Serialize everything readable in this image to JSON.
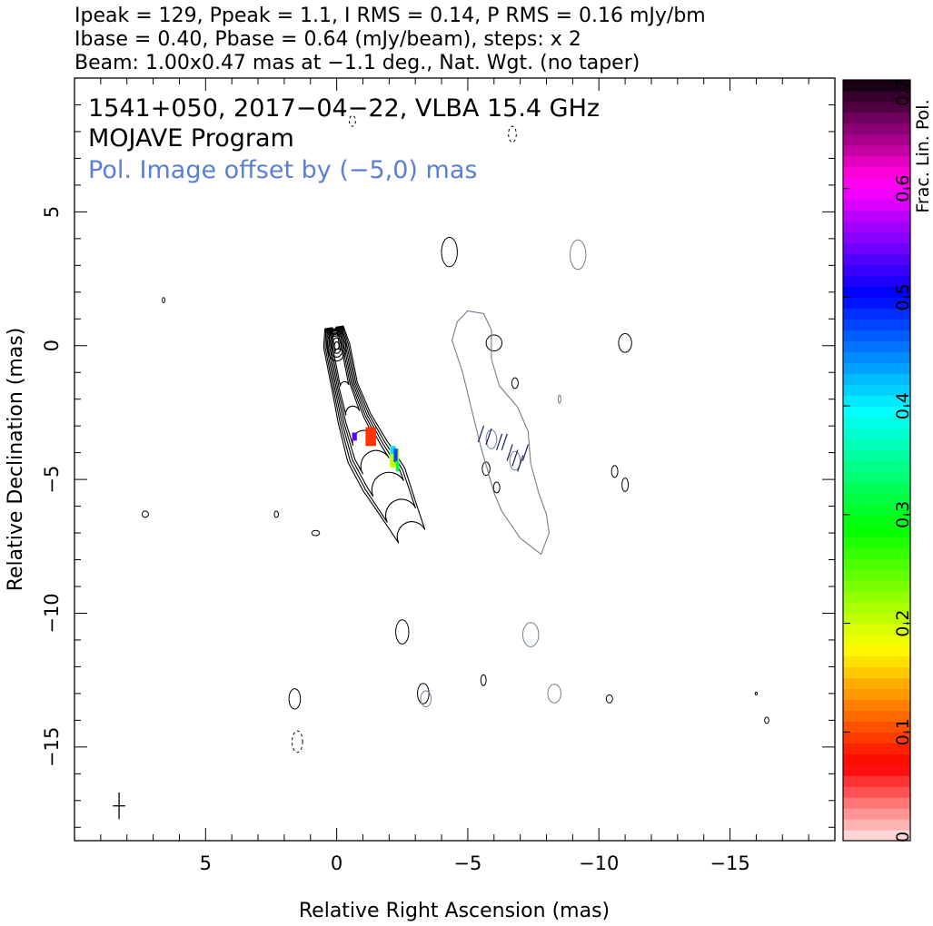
{
  "header": {
    "line1": "Ipeak = 129, Ppeak = 1.1, I RMS = 0.14, P RMS = 0.16 mJy/bm",
    "line2": "Ibase = 0.40, Pbase = 0.64 (mJy/beam), steps: x 2",
    "line3": "Beam: 1.00x0.47 mas at −1.1 deg., Nat. Wgt. (no taper)"
  },
  "inset": {
    "source_line": "1541+050, 2017−04−22, VLBA 15.4 GHz",
    "program_line": "MOJAVE Program",
    "offset_line": "Pol. Image offset by (−5,0) mas"
  },
  "colors": {
    "stokes_i_contours": "#000000",
    "pol_contours": "#6f7f8f",
    "pol_label": "#5a7fd8",
    "evpa_ticks": "#1a1a6a"
  },
  "chart_data": {
    "type": "contour",
    "xlabel": "Relative Right Ascension (mas)",
    "ylabel": "Relative Declination (mas)",
    "xlim": [
      10,
      -19
    ],
    "ylim": [
      -18.5,
      10
    ],
    "x_ticks": [
      {
        "v": 5,
        "label": "5"
      },
      {
        "v": 0,
        "label": "0"
      },
      {
        "v": -5,
        "label": "−5"
      },
      {
        "v": -10,
        "label": "−10"
      },
      {
        "v": -15,
        "label": "−15"
      }
    ],
    "y_ticks": [
      {
        "v": 5,
        "label": "5"
      },
      {
        "v": 0,
        "label": "0"
      },
      {
        "v": -5,
        "label": "−5"
      },
      {
        "v": -10,
        "label": "−10"
      },
      {
        "v": -15,
        "label": "−15"
      }
    ],
    "stokes_i_jet": {
      "levels": 8,
      "core": [
        0.0,
        0.0
      ],
      "axis": [
        [
          0.1,
          0.7
        ],
        [
          0.0,
          0.0
        ],
        [
          -0.3,
          -1.5
        ],
        [
          -0.7,
          -2.8
        ],
        [
          -1.2,
          -4.0
        ],
        [
          -1.8,
          -5.0
        ],
        [
          -2.4,
          -6.2
        ],
        [
          -2.9,
          -7.2
        ]
      ],
      "half_widths": [
        0.35,
        0.5,
        0.5,
        0.65,
        0.85,
        0.9,
        0.7,
        0.55
      ],
      "level_scale": [
        1.0,
        0.92,
        0.8,
        0.68,
        0.55,
        0.42,
        0.3,
        0.18
      ]
    },
    "noise_i": [
      [
        -4.3,
        3.5,
        0.3,
        0.55
      ],
      [
        -6.0,
        0.1,
        0.3,
        0.3
      ],
      [
        -11.0,
        0.1,
        0.25,
        0.35
      ],
      [
        -2.5,
        -10.7,
        0.25,
        0.45
      ],
      [
        1.6,
        -13.2,
        0.22,
        0.38
      ],
      [
        -3.3,
        -13.0,
        0.22,
        0.38
      ],
      [
        -5.6,
        -12.5,
        0.1,
        0.2
      ],
      [
        -10.4,
        -13.2,
        0.12,
        0.15
      ],
      [
        -16.4,
        -14.0,
        0.08,
        0.12
      ],
      [
        7.3,
        -6.3,
        0.12,
        0.12
      ],
      [
        2.3,
        -6.3,
        0.08,
        0.12
      ],
      [
        0.8,
        -7.0,
        0.15,
        0.1
      ],
      [
        -5.7,
        -4.6,
        0.15,
        0.25
      ],
      [
        -6.1,
        -5.3,
        0.12,
        0.2
      ],
      [
        -10.6,
        -4.7,
        0.12,
        0.22
      ],
      [
        -11.0,
        -5.2,
        0.12,
        0.25
      ],
      [
        -6.8,
        -1.4,
        0.12,
        0.2
      ],
      [
        6.6,
        1.7,
        0.05,
        0.1
      ],
      [
        -16.0,
        -13.0,
        0.04,
        0.05
      ]
    ],
    "noise_i_dashed": [
      [
        -0.6,
        8.4,
        0.12,
        0.2
      ],
      [
        -6.7,
        7.9,
        0.15,
        0.3
      ],
      [
        1.5,
        -14.8,
        0.2,
        0.4
      ]
    ],
    "pol_envelope": [
      [
        -5.0,
        1.3
      ],
      [
        -5.6,
        1.2
      ],
      [
        -5.9,
        0.6
      ],
      [
        -5.9,
        -0.5
      ],
      [
        -6.2,
        -1.5
      ],
      [
        -6.9,
        -2.3
      ],
      [
        -7.3,
        -3.2
      ],
      [
        -7.4,
        -4.4
      ],
      [
        -7.7,
        -5.5
      ],
      [
        -8.0,
        -6.3
      ],
      [
        -8.1,
        -7.0
      ],
      [
        -7.8,
        -7.8
      ],
      [
        -7.0,
        -7.2
      ],
      [
        -6.3,
        -6.2
      ],
      [
        -6.0,
        -5.5
      ],
      [
        -5.8,
        -4.8
      ],
      [
        -5.5,
        -3.8
      ],
      [
        -5.2,
        -2.6
      ],
      [
        -4.8,
        -1.0
      ],
      [
        -4.4,
        0.2
      ],
      [
        -4.6,
        0.9
      ]
    ],
    "noise_pol": [
      [
        -9.2,
        3.4,
        0.3,
        0.55
      ],
      [
        -7.4,
        -10.8,
        0.3,
        0.45
      ],
      [
        -8.3,
        -13.0,
        0.25,
        0.35
      ],
      [
        -3.4,
        -13.2,
        0.2,
        0.3
      ],
      [
        -5.9,
        -3.5,
        0.2,
        0.35
      ],
      [
        -6.8,
        -4.3,
        0.2,
        0.35
      ],
      [
        -8.5,
        -2.0,
        0.05,
        0.15
      ]
    ],
    "evpa_ticks": [
      [
        -5.5,
        -3.3
      ],
      [
        -5.8,
        -3.4
      ],
      [
        -6.2,
        -3.6
      ],
      [
        -6.4,
        -3.6
      ],
      [
        -6.6,
        -4.0
      ],
      [
        -6.8,
        -4.2
      ],
      [
        -7.0,
        -4.4
      ],
      [
        -7.2,
        -4.0
      ]
    ],
    "frac_pol_pixels": [
      {
        "x": -0.9,
        "y": -3.4,
        "w": 0.4,
        "h": 0.7,
        "v": 0.02
      },
      {
        "x": -0.5,
        "y": -3.4,
        "w": 0.18,
        "h": 0.3,
        "v": 0.48
      },
      {
        "x": -1.85,
        "y": -4.2,
        "w": 0.35,
        "h": 0.7,
        "v": 0.12
      },
      {
        "x": -1.95,
        "y": -3.9,
        "w": 0.2,
        "h": 0.3,
        "v": 0.3
      },
      {
        "x": -2.1,
        "y": -4.1,
        "w": 0.15,
        "h": 0.5,
        "v": 0.36
      },
      {
        "x": -2.2,
        "y": -4.5,
        "w": 0.12,
        "h": 0.4,
        "v": 0.22
      }
    ],
    "beam": {
      "pos": [
        8.3,
        -17.2
      ],
      "major_mas": 1.0,
      "minor_mas": 0.47,
      "pa_deg": -1.1
    },
    "colorbar": {
      "label": "Frac. Lin. Pol.",
      "range": [
        0,
        0.7
      ],
      "tick_values": [
        0,
        0.1,
        0.2,
        0.3,
        0.4,
        0.5,
        0.6,
        0.7
      ],
      "tick_labels": [
        "0",
        "0.1",
        "0.2",
        "0.3",
        "0.4",
        "0.5",
        "0.6",
        "0.7"
      ]
    }
  }
}
